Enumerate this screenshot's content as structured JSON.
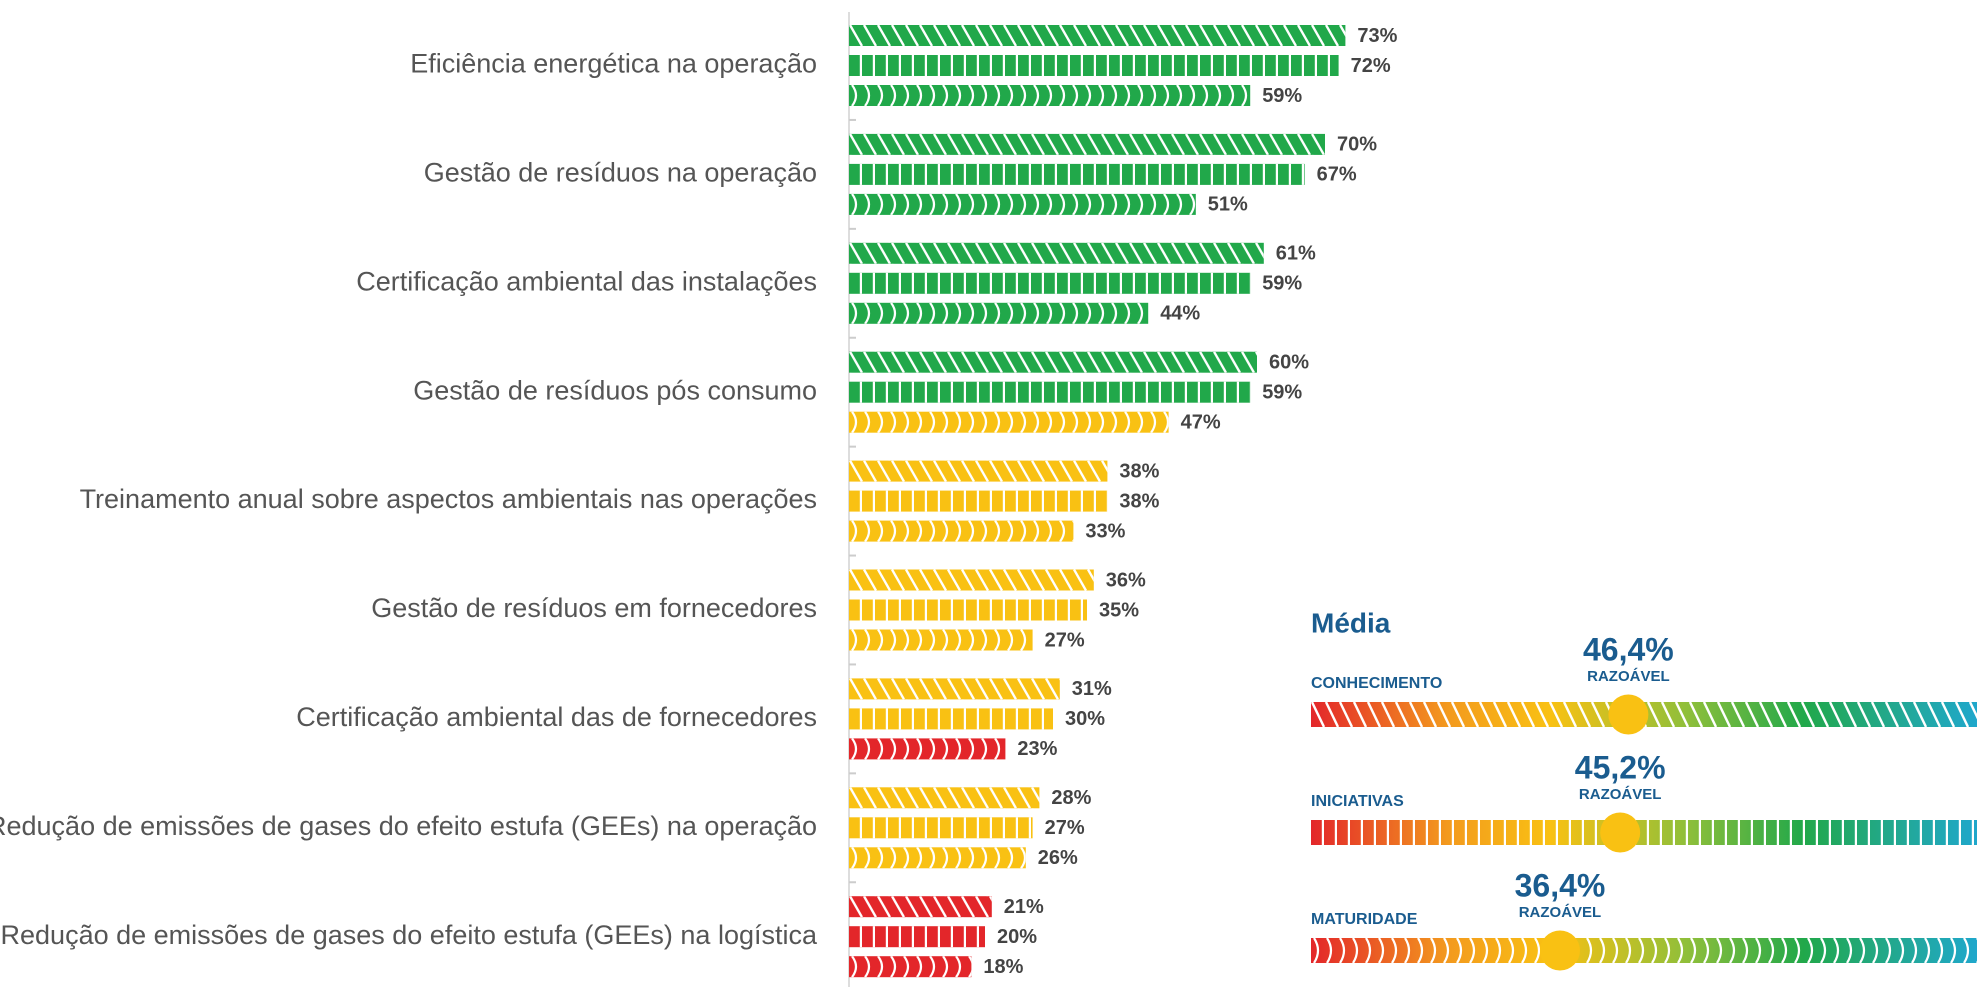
{
  "chart_data": {
    "type": "bar",
    "orientation": "horizontal",
    "categories": [
      "Eficiência energética na operação",
      "Gestão de resíduos na operação",
      "Certificação ambiental das instalações",
      "Gestão de resíduos pós consumo",
      "Treinamento anual sobre aspectos ambientais nas operações",
      "Gestão de resíduos em fornecedores",
      "Certificação ambiental das de fornecedores",
      "Redução de emissões de gases do efeito estufa (GEEs) na operação",
      "Redução de emissões de gases do efeito estufa (GEEs) na logística"
    ],
    "series": [
      {
        "values": [
          73,
          70,
          61,
          60,
          38,
          36,
          31,
          28,
          21
        ],
        "value_labels": [
          "73%",
          "70%",
          "61%",
          "60%",
          "38%",
          "36%",
          "31%",
          "28%",
          "21%"
        ],
        "colors": [
          "#21a84a",
          "#21a84a",
          "#21a84a",
          "#21a84a",
          "#f9c113",
          "#f9c113",
          "#f9c113",
          "#f9c113",
          "#e3262a"
        ]
      },
      {
        "values": [
          72,
          67,
          59,
          59,
          38,
          35,
          30,
          27,
          20
        ],
        "value_labels": [
          "72%",
          "67%",
          "59%",
          "59%",
          "38%",
          "35%",
          "30%",
          "27%",
          "20%"
        ],
        "colors": [
          "#21a84a",
          "#21a84a",
          "#21a84a",
          "#21a84a",
          "#f9c113",
          "#f9c113",
          "#f9c113",
          "#f9c113",
          "#e3262a"
        ]
      },
      {
        "values": [
          59,
          51,
          44,
          47,
          33,
          27,
          23,
          26,
          18
        ],
        "value_labels": [
          "59%",
          "51%",
          "44%",
          "47%",
          "33%",
          "27%",
          "23%",
          "26%",
          "18%"
        ],
        "colors": [
          "#21a84a",
          "#21a84a",
          "#21a84a",
          "#f9c113",
          "#f9c113",
          "#f9c113",
          "#e3262a",
          "#f9c113",
          "#e3262a"
        ]
      }
    ],
    "xlim": [
      0,
      100
    ]
  },
  "average": {
    "title": "Média",
    "lim": [
      0,
      100
    ],
    "items": [
      {
        "label": "CONHECIMENTO",
        "value": 46.4,
        "value_label": "46,4%",
        "rating": "RAZOÁVEL"
      },
      {
        "label": "INICIATIVAS",
        "value": 45.2,
        "value_label": "45,2%",
        "rating": "RAZOÁVEL"
      },
      {
        "label": "MATURIDADE",
        "value": 36.4,
        "value_label": "36,4%",
        "rating": "RAZOÁVEL"
      }
    ]
  }
}
